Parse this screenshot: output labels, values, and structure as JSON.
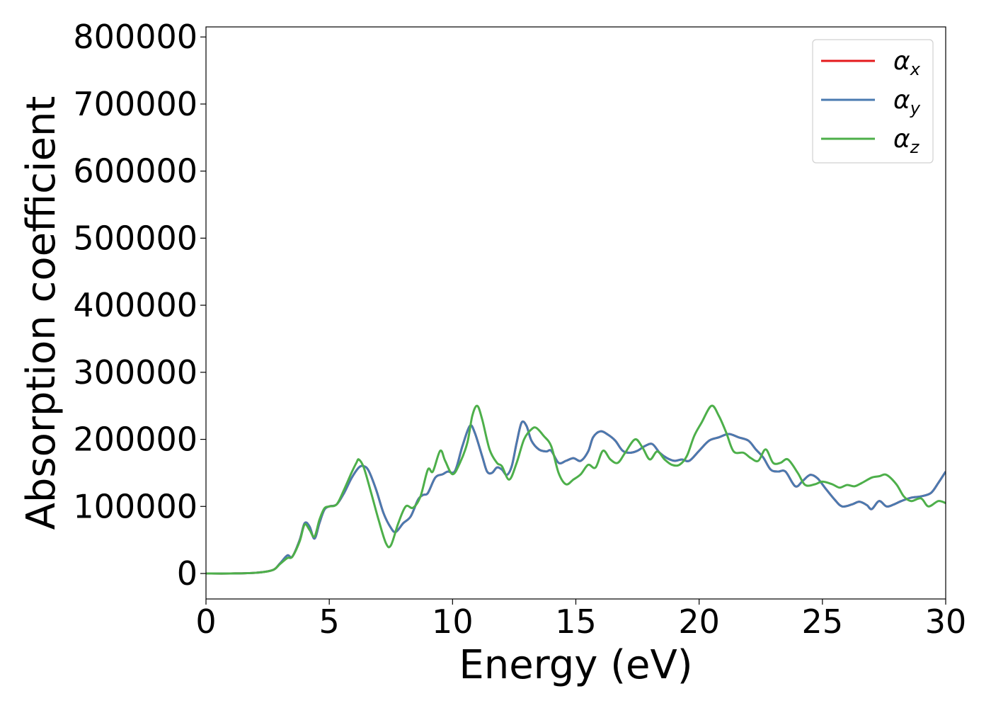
{
  "chart_data": {
    "type": "line",
    "title": "",
    "xlabel": "Energy (eV)",
    "ylabel": "Absorption coefficient",
    "xlim": [
      0,
      30
    ],
    "ylim": [
      -38000,
      815000
    ],
    "xticks": [
      0,
      5,
      10,
      15,
      20,
      25,
      30
    ],
    "xtick_labels": [
      "0",
      "5",
      "10",
      "15",
      "20",
      "25",
      "30"
    ],
    "yticks": [
      0,
      100000,
      200000,
      300000,
      400000,
      500000,
      600000,
      700000,
      800000
    ],
    "ytick_labels": [
      "0",
      "100000",
      "200000",
      "300000",
      "400000",
      "500000",
      "600000",
      "700000",
      "800000"
    ],
    "grid": false,
    "legend_position": "top-right",
    "series": [
      {
        "name": "α",
        "subscript": "x",
        "color": "#e41a1c",
        "points": [
          [
            0,
            0
          ],
          [
            1,
            0
          ],
          [
            2,
            1000
          ],
          [
            2.7,
            5000
          ],
          [
            3.0,
            15000
          ],
          [
            3.3,
            27000
          ],
          [
            3.5,
            25000
          ],
          [
            3.8,
            50000
          ],
          [
            4.0,
            75000
          ],
          [
            4.2,
            70000
          ],
          [
            4.4,
            52000
          ],
          [
            4.6,
            75000
          ],
          [
            4.8,
            95000
          ],
          [
            5.0,
            100000
          ],
          [
            5.3,
            103000
          ],
          [
            5.6,
            120000
          ],
          [
            5.9,
            142000
          ],
          [
            6.2,
            158000
          ],
          [
            6.4,
            160000
          ],
          [
            6.6,
            153000
          ],
          [
            6.9,
            125000
          ],
          [
            7.2,
            90000
          ],
          [
            7.5,
            68000
          ],
          [
            7.7,
            62000
          ],
          [
            8.0,
            75000
          ],
          [
            8.3,
            85000
          ],
          [
            8.6,
            110000
          ],
          [
            8.8,
            117000
          ],
          [
            9.0,
            120000
          ],
          [
            9.3,
            143000
          ],
          [
            9.6,
            148000
          ],
          [
            9.8,
            152000
          ],
          [
            10.1,
            153000
          ],
          [
            10.4,
            190000
          ],
          [
            10.7,
            220000
          ],
          [
            10.9,
            210000
          ],
          [
            11.2,
            175000
          ],
          [
            11.4,
            152000
          ],
          [
            11.6,
            150000
          ],
          [
            11.8,
            158000
          ],
          [
            12.0,
            155000
          ],
          [
            12.2,
            147000
          ],
          [
            12.4,
            160000
          ],
          [
            12.6,
            195000
          ],
          [
            12.8,
            225000
          ],
          [
            13.0,
            220000
          ],
          [
            13.2,
            198000
          ],
          [
            13.5,
            185000
          ],
          [
            13.8,
            182000
          ],
          [
            14.0,
            183000
          ],
          [
            14.3,
            165000
          ],
          [
            14.6,
            168000
          ],
          [
            14.9,
            172000
          ],
          [
            15.2,
            168000
          ],
          [
            15.5,
            182000
          ],
          [
            15.7,
            203000
          ],
          [
            16.0,
            212000
          ],
          [
            16.3,
            207000
          ],
          [
            16.6,
            198000
          ],
          [
            16.9,
            183000
          ],
          [
            17.2,
            180000
          ],
          [
            17.5,
            183000
          ],
          [
            17.8,
            190000
          ],
          [
            18.1,
            193000
          ],
          [
            18.4,
            180000
          ],
          [
            18.7,
            172000
          ],
          [
            19.0,
            168000
          ],
          [
            19.3,
            170000
          ],
          [
            19.6,
            168000
          ],
          [
            20.0,
            183000
          ],
          [
            20.4,
            198000
          ],
          [
            20.8,
            203000
          ],
          [
            21.2,
            208000
          ],
          [
            21.6,
            203000
          ],
          [
            22.0,
            198000
          ],
          [
            22.3,
            185000
          ],
          [
            22.6,
            173000
          ],
          [
            22.9,
            155000
          ],
          [
            23.2,
            152000
          ],
          [
            23.5,
            152000
          ],
          [
            23.9,
            130000
          ],
          [
            24.2,
            138000
          ],
          [
            24.5,
            147000
          ],
          [
            24.8,
            142000
          ],
          [
            25.1,
            128000
          ],
          [
            25.5,
            110000
          ],
          [
            25.8,
            100000
          ],
          [
            26.2,
            103000
          ],
          [
            26.5,
            107000
          ],
          [
            26.8,
            102000
          ],
          [
            27.0,
            96000
          ],
          [
            27.3,
            108000
          ],
          [
            27.6,
            100000
          ],
          [
            27.9,
            103000
          ],
          [
            28.2,
            108000
          ],
          [
            28.6,
            113000
          ],
          [
            29.0,
            115000
          ],
          [
            29.4,
            120000
          ],
          [
            29.7,
            135000
          ],
          [
            30,
            152000
          ]
        ]
      },
      {
        "name": "α",
        "subscript": "y",
        "color": "#4a7ab0",
        "points": [
          [
            0,
            0
          ],
          [
            1,
            0
          ],
          [
            2,
            1000
          ],
          [
            2.7,
            5000
          ],
          [
            3.0,
            15000
          ],
          [
            3.3,
            27000
          ],
          [
            3.5,
            25000
          ],
          [
            3.8,
            50000
          ],
          [
            4.0,
            75000
          ],
          [
            4.2,
            70000
          ],
          [
            4.4,
            52000
          ],
          [
            4.6,
            75000
          ],
          [
            4.8,
            95000
          ],
          [
            5.0,
            100000
          ],
          [
            5.3,
            103000
          ],
          [
            5.6,
            120000
          ],
          [
            5.9,
            142000
          ],
          [
            6.2,
            158000
          ],
          [
            6.4,
            160000
          ],
          [
            6.6,
            153000
          ],
          [
            6.9,
            125000
          ],
          [
            7.2,
            90000
          ],
          [
            7.5,
            68000
          ],
          [
            7.7,
            62000
          ],
          [
            8.0,
            75000
          ],
          [
            8.3,
            85000
          ],
          [
            8.6,
            110000
          ],
          [
            8.8,
            117000
          ],
          [
            9.0,
            120000
          ],
          [
            9.3,
            143000
          ],
          [
            9.6,
            148000
          ],
          [
            9.8,
            152000
          ],
          [
            10.1,
            153000
          ],
          [
            10.4,
            190000
          ],
          [
            10.7,
            220000
          ],
          [
            10.9,
            210000
          ],
          [
            11.2,
            175000
          ],
          [
            11.4,
            152000
          ],
          [
            11.6,
            150000
          ],
          [
            11.8,
            158000
          ],
          [
            12.0,
            155000
          ],
          [
            12.2,
            147000
          ],
          [
            12.4,
            160000
          ],
          [
            12.6,
            195000
          ],
          [
            12.8,
            225000
          ],
          [
            13.0,
            220000
          ],
          [
            13.2,
            198000
          ],
          [
            13.5,
            185000
          ],
          [
            13.8,
            182000
          ],
          [
            14.0,
            183000
          ],
          [
            14.3,
            165000
          ],
          [
            14.6,
            168000
          ],
          [
            14.9,
            172000
          ],
          [
            15.2,
            168000
          ],
          [
            15.5,
            182000
          ],
          [
            15.7,
            203000
          ],
          [
            16.0,
            212000
          ],
          [
            16.3,
            207000
          ],
          [
            16.6,
            198000
          ],
          [
            16.9,
            183000
          ],
          [
            17.2,
            180000
          ],
          [
            17.5,
            183000
          ],
          [
            17.8,
            190000
          ],
          [
            18.1,
            193000
          ],
          [
            18.4,
            180000
          ],
          [
            18.7,
            172000
          ],
          [
            19.0,
            168000
          ],
          [
            19.3,
            170000
          ],
          [
            19.6,
            168000
          ],
          [
            20.0,
            183000
          ],
          [
            20.4,
            198000
          ],
          [
            20.8,
            203000
          ],
          [
            21.2,
            208000
          ],
          [
            21.6,
            203000
          ],
          [
            22.0,
            198000
          ],
          [
            22.3,
            185000
          ],
          [
            22.6,
            173000
          ],
          [
            22.9,
            155000
          ],
          [
            23.2,
            152000
          ],
          [
            23.5,
            152000
          ],
          [
            23.9,
            130000
          ],
          [
            24.2,
            138000
          ],
          [
            24.5,
            147000
          ],
          [
            24.8,
            142000
          ],
          [
            25.1,
            128000
          ],
          [
            25.5,
            110000
          ],
          [
            25.8,
            100000
          ],
          [
            26.2,
            103000
          ],
          [
            26.5,
            107000
          ],
          [
            26.8,
            102000
          ],
          [
            27.0,
            96000
          ],
          [
            27.3,
            108000
          ],
          [
            27.6,
            100000
          ],
          [
            27.9,
            103000
          ],
          [
            28.2,
            108000
          ],
          [
            28.6,
            113000
          ],
          [
            29.0,
            115000
          ],
          [
            29.4,
            120000
          ],
          [
            29.7,
            135000
          ],
          [
            30,
            152000
          ]
        ]
      },
      {
        "name": "α",
        "subscript": "z",
        "color": "#4daf4a",
        "points": [
          [
            0,
            0
          ],
          [
            1,
            0
          ],
          [
            2,
            1000
          ],
          [
            2.7,
            5000
          ],
          [
            3.0,
            14000
          ],
          [
            3.3,
            23000
          ],
          [
            3.5,
            25000
          ],
          [
            3.8,
            48000
          ],
          [
            4.0,
            73000
          ],
          [
            4.2,
            65000
          ],
          [
            4.4,
            55000
          ],
          [
            4.6,
            80000
          ],
          [
            4.8,
            97000
          ],
          [
            5.0,
            100000
          ],
          [
            5.3,
            103000
          ],
          [
            5.6,
            125000
          ],
          [
            5.9,
            150000
          ],
          [
            6.1,
            165000
          ],
          [
            6.2,
            170000
          ],
          [
            6.4,
            158000
          ],
          [
            6.7,
            120000
          ],
          [
            7.0,
            80000
          ],
          [
            7.3,
            45000
          ],
          [
            7.5,
            42000
          ],
          [
            7.8,
            75000
          ],
          [
            8.1,
            100000
          ],
          [
            8.4,
            98000
          ],
          [
            8.7,
            115000
          ],
          [
            9.0,
            155000
          ],
          [
            9.2,
            152000
          ],
          [
            9.5,
            183000
          ],
          [
            9.7,
            168000
          ],
          [
            10.0,
            148000
          ],
          [
            10.3,
            165000
          ],
          [
            10.6,
            195000
          ],
          [
            10.8,
            235000
          ],
          [
            11.0,
            250000
          ],
          [
            11.2,
            230000
          ],
          [
            11.5,
            185000
          ],
          [
            11.8,
            165000
          ],
          [
            12.0,
            160000
          ],
          [
            12.3,
            140000
          ],
          [
            12.6,
            165000
          ],
          [
            12.9,
            200000
          ],
          [
            13.2,
            215000
          ],
          [
            13.4,
            217000
          ],
          [
            13.7,
            205000
          ],
          [
            14.0,
            190000
          ],
          [
            14.3,
            150000
          ],
          [
            14.6,
            133000
          ],
          [
            14.9,
            140000
          ],
          [
            15.2,
            148000
          ],
          [
            15.5,
            162000
          ],
          [
            15.8,
            158000
          ],
          [
            16.1,
            183000
          ],
          [
            16.4,
            170000
          ],
          [
            16.7,
            165000
          ],
          [
            17.0,
            180000
          ],
          [
            17.4,
            200000
          ],
          [
            17.7,
            188000
          ],
          [
            18.0,
            170000
          ],
          [
            18.3,
            182000
          ],
          [
            18.6,
            170000
          ],
          [
            18.9,
            162000
          ],
          [
            19.2,
            162000
          ],
          [
            19.5,
            175000
          ],
          [
            19.8,
            205000
          ],
          [
            20.1,
            225000
          ],
          [
            20.5,
            250000
          ],
          [
            20.8,
            235000
          ],
          [
            21.1,
            210000
          ],
          [
            21.4,
            182000
          ],
          [
            21.8,
            180000
          ],
          [
            22.1,
            172000
          ],
          [
            22.4,
            168000
          ],
          [
            22.7,
            185000
          ],
          [
            23.0,
            165000
          ],
          [
            23.3,
            165000
          ],
          [
            23.6,
            170000
          ],
          [
            24.0,
            150000
          ],
          [
            24.3,
            132000
          ],
          [
            24.7,
            133000
          ],
          [
            25.0,
            137000
          ],
          [
            25.4,
            133000
          ],
          [
            25.7,
            128000
          ],
          [
            26.0,
            132000
          ],
          [
            26.3,
            130000
          ],
          [
            26.6,
            135000
          ],
          [
            27.0,
            143000
          ],
          [
            27.3,
            145000
          ],
          [
            27.6,
            147000
          ],
          [
            28.0,
            133000
          ],
          [
            28.3,
            115000
          ],
          [
            28.6,
            108000
          ],
          [
            29.0,
            112000
          ],
          [
            29.3,
            100000
          ],
          [
            29.7,
            108000
          ],
          [
            30,
            105000
          ]
        ]
      }
    ]
  }
}
